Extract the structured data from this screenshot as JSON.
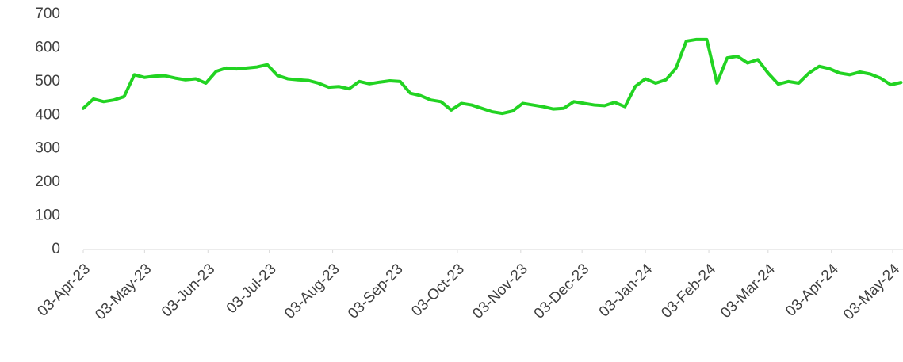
{
  "chart_data": {
    "type": "line",
    "x": [
      "2023-04-03",
      "2023-04-08",
      "2023-04-13",
      "2023-04-18",
      "2023-04-23",
      "2023-04-28",
      "2023-05-03",
      "2023-05-08",
      "2023-05-13",
      "2023-05-18",
      "2023-05-23",
      "2023-05-28",
      "2023-06-02",
      "2023-06-07",
      "2023-06-12",
      "2023-06-17",
      "2023-06-22",
      "2023-06-27",
      "2023-07-02",
      "2023-07-07",
      "2023-07-12",
      "2023-07-17",
      "2023-07-22",
      "2023-07-27",
      "2023-08-01",
      "2023-08-06",
      "2023-08-11",
      "2023-08-16",
      "2023-08-21",
      "2023-08-26",
      "2023-08-31",
      "2023-09-05",
      "2023-09-10",
      "2023-09-15",
      "2023-09-20",
      "2023-09-25",
      "2023-09-30",
      "2023-10-05",
      "2023-10-10",
      "2023-10-15",
      "2023-10-20",
      "2023-10-25",
      "2023-10-30",
      "2023-11-04",
      "2023-11-09",
      "2023-11-14",
      "2023-11-19",
      "2023-11-24",
      "2023-11-29",
      "2023-12-04",
      "2023-12-09",
      "2023-12-14",
      "2023-12-19",
      "2023-12-24",
      "2023-12-29",
      "2024-01-03",
      "2024-01-08",
      "2024-01-13",
      "2024-01-18",
      "2024-01-23",
      "2024-01-28",
      "2024-02-02",
      "2024-02-07",
      "2024-02-12",
      "2024-02-17",
      "2024-02-22",
      "2024-02-27",
      "2024-03-03",
      "2024-03-08",
      "2024-03-13",
      "2024-03-18",
      "2024-03-23",
      "2024-03-28",
      "2024-04-02",
      "2024-04-07",
      "2024-04-12",
      "2024-04-17",
      "2024-04-22",
      "2024-04-27",
      "2024-05-02",
      "2024-05-07"
    ],
    "series": [
      {
        "color": "#22d322",
        "values": [
          420,
          448,
          440,
          445,
          455,
          520,
          512,
          516,
          517,
          510,
          505,
          508,
          495,
          530,
          540,
          537,
          540,
          543,
          550,
          518,
          508,
          505,
          503,
          495,
          483,
          485,
          478,
          500,
          493,
          498,
          502,
          500,
          465,
          458,
          445,
          440,
          415,
          435,
          430,
          420,
          410,
          405,
          412,
          435,
          430,
          425,
          418,
          420,
          440,
          435,
          430,
          428,
          438,
          425,
          485,
          508,
          495,
          505,
          540,
          620,
          625,
          625,
          495,
          570,
          575,
          555,
          565,
          525,
          492,
          500,
          495,
          525,
          545,
          538,
          525,
          520,
          528,
          522,
          510,
          490,
          497
        ]
      }
    ],
    "xlim": [
      "2023-04-03",
      "2024-05-08"
    ],
    "xticks": [
      {
        "value": "2023-04-03",
        "label": "03-Apr-23"
      },
      {
        "value": "2023-05-03",
        "label": "03-May-23"
      },
      {
        "value": "2023-06-03",
        "label": "03-Jun-23"
      },
      {
        "value": "2023-07-03",
        "label": "03-Jul-23"
      },
      {
        "value": "2023-08-03",
        "label": "03-Aug-23"
      },
      {
        "value": "2023-09-03",
        "label": "03-Sep-23"
      },
      {
        "value": "2023-10-03",
        "label": "03-Oct-23"
      },
      {
        "value": "2023-11-03",
        "label": "03-Nov-23"
      },
      {
        "value": "2023-12-03",
        "label": "03-Dec-23"
      },
      {
        "value": "2024-01-03",
        "label": "03-Jan-24"
      },
      {
        "value": "2024-02-03",
        "label": "03-Feb-24"
      },
      {
        "value": "2024-03-03",
        "label": "03-Mar-24"
      },
      {
        "value": "2024-04-03",
        "label": "03-Apr-24"
      },
      {
        "value": "2024-05-03",
        "label": "03-May-24"
      }
    ],
    "ylim": [
      0,
      700
    ],
    "yticks": [
      0,
      100,
      200,
      300,
      400,
      500,
      600,
      700
    ],
    "grid": false
  }
}
